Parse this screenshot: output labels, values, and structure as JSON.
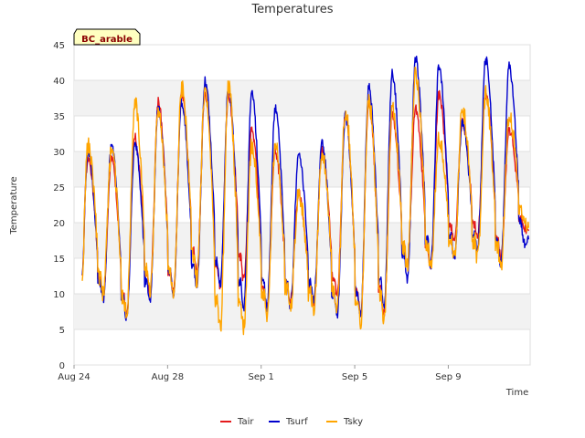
{
  "chart_data": {
    "type": "line",
    "title": "Temperatures",
    "xlabel": "Time",
    "ylabel": "Temperature",
    "badge": "BC_arable",
    "x_range": [
      "2023-08-24",
      "2023-09-12T12:00"
    ],
    "x_ticks": [
      {
        "date": "2023-08-24",
        "label": "Aug 24"
      },
      {
        "date": "2023-08-28",
        "label": "Aug 28"
      },
      {
        "date": "2023-09-01",
        "label": "Sep 1"
      },
      {
        "date": "2023-09-05",
        "label": "Sep 5"
      },
      {
        "date": "2023-09-09",
        "label": "Sep 9"
      }
    ],
    "ylim": [
      0,
      45
    ],
    "y_ticks": [
      0,
      5,
      10,
      15,
      20,
      25,
      30,
      35,
      40,
      45
    ],
    "grid": true,
    "legend_position": "bottom",
    "daily": {
      "dates": [
        "2023-08-24",
        "2023-08-25",
        "2023-08-26",
        "2023-08-27",
        "2023-08-28",
        "2023-08-29",
        "2023-08-30",
        "2023-08-31",
        "2023-09-01",
        "2023-09-02",
        "2023-09-03",
        "2023-09-04",
        "2023-09-05",
        "2023-09-06",
        "2023-09-07",
        "2023-09-08",
        "2023-09-09",
        "2023-09-10",
        "2023-09-11",
        "2023-09-12"
      ],
      "start_value": 13,
      "end_value": 19
    },
    "series": [
      {
        "name": "Tair",
        "color": "#e41a1c",
        "daily_max": [
          29,
          29,
          32,
          37,
          38,
          38,
          38,
          33,
          30,
          24,
          30,
          35,
          37,
          35,
          36,
          38,
          34,
          38,
          33,
          18
        ],
        "daily_min": [
          9.5,
          10,
          7,
          10,
          10,
          13,
          11,
          12,
          8,
          9,
          9,
          10,
          7,
          7,
          14,
          14,
          17,
          18,
          15,
          19
        ]
      },
      {
        "name": "Tsurf",
        "color": "#0000cd",
        "daily_max": [
          30,
          31,
          31,
          36,
          37,
          40,
          39,
          38,
          36,
          30,
          31,
          35,
          39,
          41,
          43,
          42,
          34,
          43,
          42,
          17
        ],
        "daily_min": [
          9.5,
          9,
          6.5,
          9,
          10,
          11,
          11,
          8,
          8,
          8,
          9,
          7,
          7,
          8,
          12,
          14,
          15,
          16,
          14,
          17
        ]
      },
      {
        "name": "Tsky",
        "color": "#ffa500",
        "daily_max": [
          31,
          30,
          37,
          36,
          39,
          39,
          39,
          31,
          31,
          24,
          30,
          36,
          37,
          36,
          41,
          32,
          36,
          38,
          35,
          20
        ],
        "daily_min": [
          9.5,
          10,
          7,
          10,
          10,
          12,
          5,
          5,
          7,
          8,
          8,
          8,
          6,
          6.5,
          14,
          14,
          15,
          15,
          14,
          20
        ]
      }
    ]
  }
}
